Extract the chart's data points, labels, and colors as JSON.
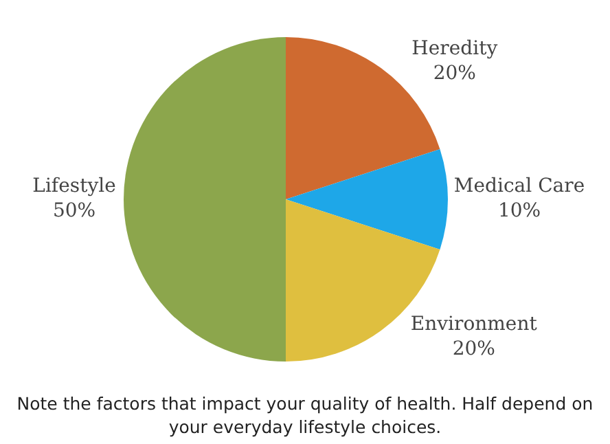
{
  "chart_data": {
    "type": "pie",
    "categories": [
      "Heredity",
      "Medical Care",
      "Environment",
      "Lifestyle"
    ],
    "values": [
      20,
      10,
      20,
      50
    ],
    "colors": [
      "#cf6a30",
      "#1ea7e8",
      "#dfbf3f",
      "#8ca64c"
    ],
    "value_labels": [
      "20%",
      "10%",
      "20%",
      "50%"
    ],
    "legend": false,
    "annotations": [
      "Note the factors that impact your quality of health. Half depend on your everyday lifestyle choices."
    ]
  }
}
